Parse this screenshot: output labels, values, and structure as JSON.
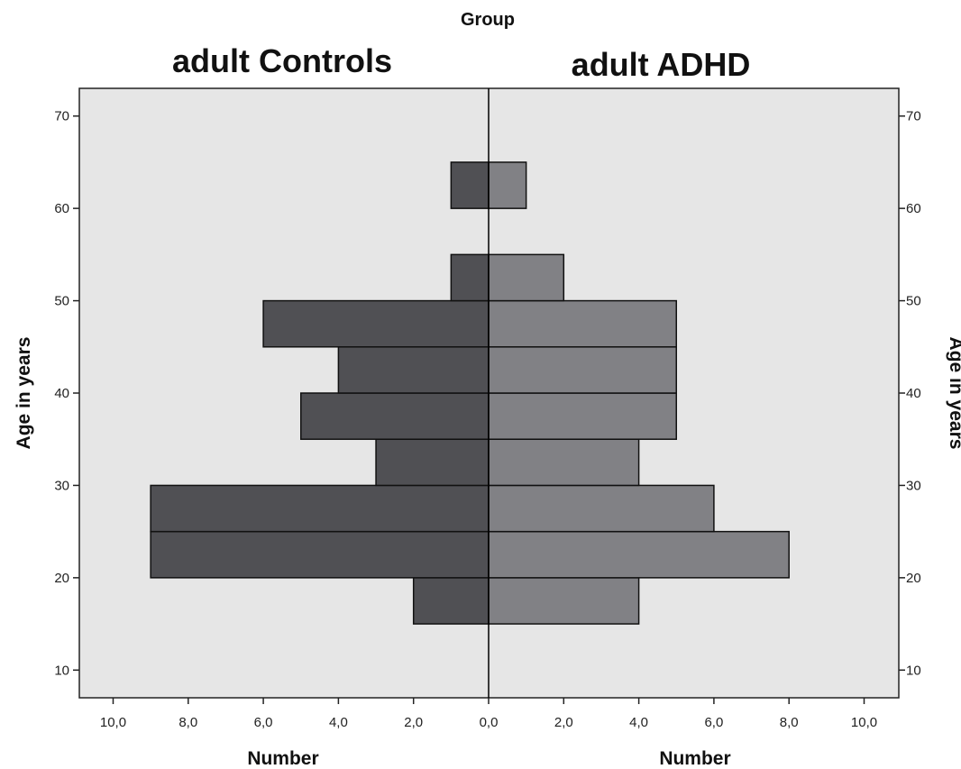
{
  "chart_data": {
    "type": "bar",
    "orientation": "horizontal",
    "layout": "population-pyramid",
    "group_title": "Group",
    "bin_width_years": 5,
    "age_bins": [
      15,
      20,
      25,
      30,
      35,
      40,
      45,
      50,
      55,
      60,
      65
    ],
    "ylim": [
      7,
      73
    ],
    "xlim": [
      0,
      10.9
    ],
    "y_ticks": [
      10,
      20,
      30,
      40,
      50,
      60,
      70
    ],
    "y_tick_labels": [
      "10",
      "20",
      "30",
      "40",
      "50",
      "60",
      "70"
    ],
    "x_ticks": [
      0,
      2,
      4,
      6,
      8,
      10
    ],
    "x_tick_labels": [
      "0,0",
      "2,0",
      "4,0",
      "6,0",
      "8,0",
      "10,0"
    ],
    "ylabel_left": "Age in years",
    "ylabel_right": "Age in years",
    "series": [
      {
        "name": "adult Controls",
        "side": "left",
        "color": "#505054",
        "xlabel": "Number",
        "values": [
          2,
          9,
          9,
          3,
          5,
          4,
          6,
          1,
          0,
          1,
          0
        ]
      },
      {
        "name": "adult ADHD",
        "side": "right",
        "color": "#818185",
        "xlabel": "Number",
        "values": [
          4,
          8,
          6,
          4,
          5,
          5,
          5,
          2,
          0,
          1,
          0
        ]
      }
    ],
    "plot_background": "#e6e6e6",
    "grid": false
  }
}
